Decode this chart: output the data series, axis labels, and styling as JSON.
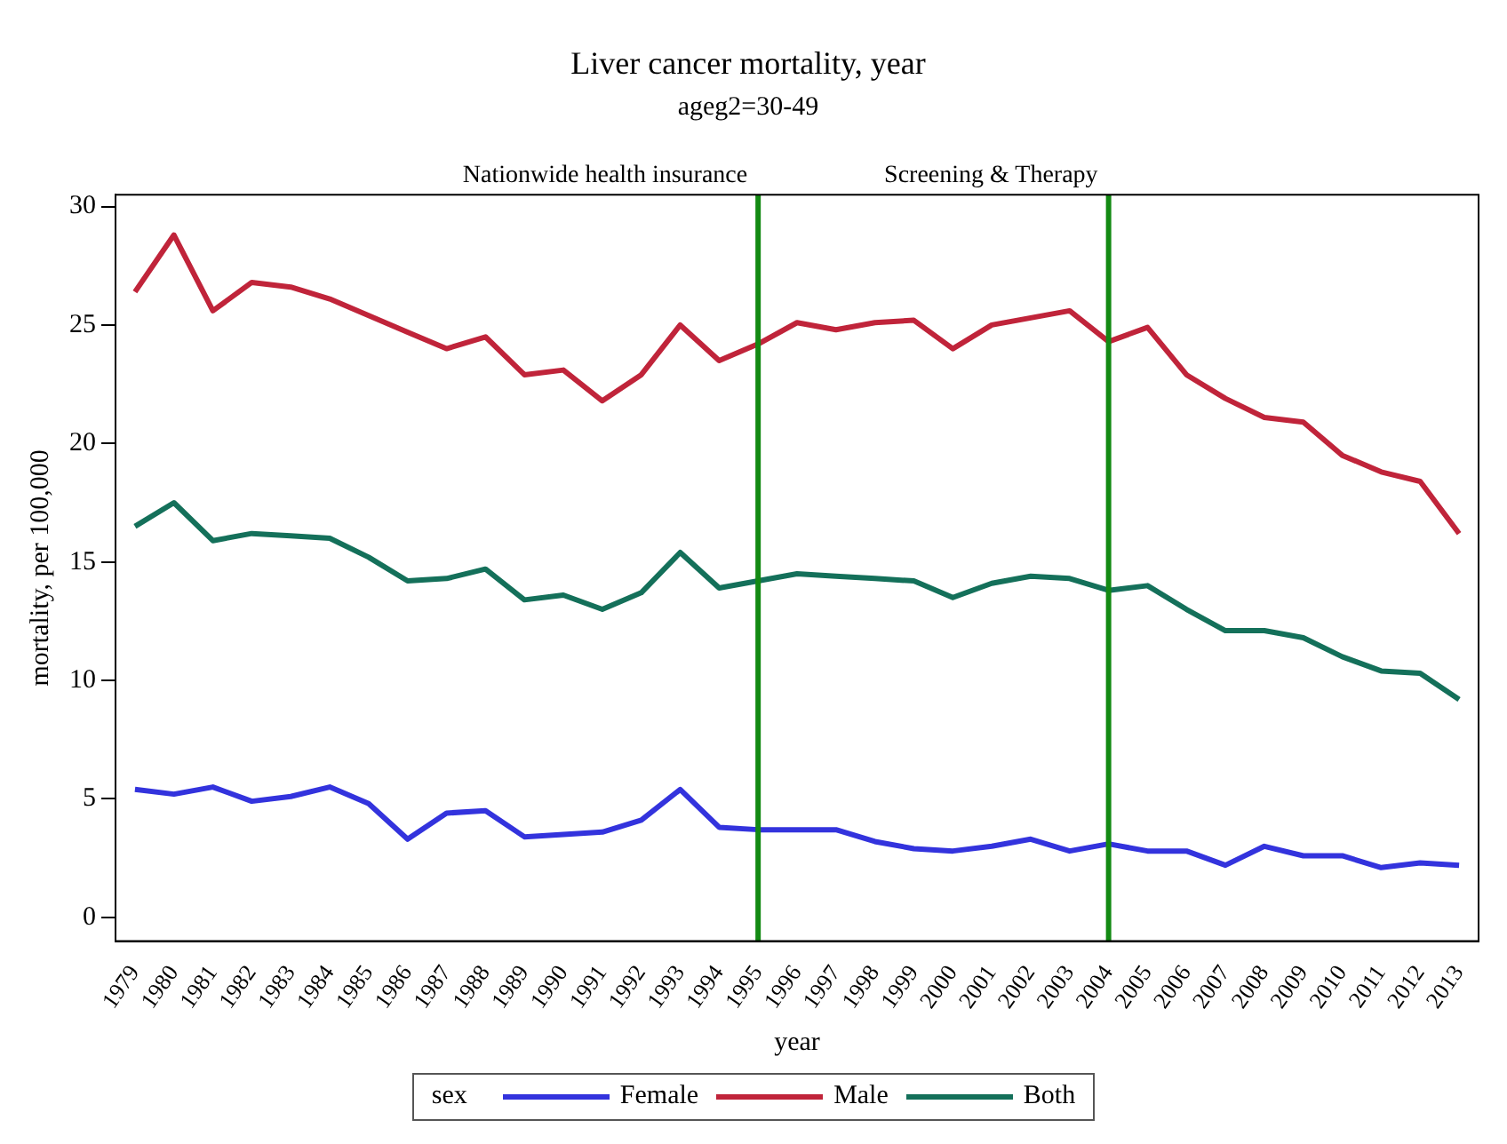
{
  "chart_data": {
    "type": "line",
    "title": "Liver cancer mortality, year",
    "subtitle": "ageg2=30-49",
    "xlabel": "year",
    "ylabel": "mortality, per 100,000",
    "legend_title": "sex",
    "legend": "bottom",
    "grid": false,
    "marker": "none",
    "line_style": "solid",
    "categories": [
      "1979",
      "1980",
      "1981",
      "1982",
      "1983",
      "1984",
      "1985",
      "1986",
      "1987",
      "1988",
      "1989",
      "1990",
      "1991",
      "1992",
      "1993",
      "1994",
      "1995",
      "1996",
      "1997",
      "1998",
      "1999",
      "2000",
      "2001",
      "2002",
      "2003",
      "2004",
      "2005",
      "2006",
      "2007",
      "2008",
      "2009",
      "2010",
      "2011",
      "2012",
      "2013"
    ],
    "ylim": [
      -1,
      30.5
    ],
    "yticks": [
      0,
      5,
      10,
      15,
      20,
      25,
      30
    ],
    "series": [
      {
        "name": "Female",
        "color": "#3333dd",
        "values": [
          5.4,
          5.2,
          5.5,
          4.9,
          5.1,
          5.5,
          4.8,
          3.3,
          4.4,
          4.5,
          3.4,
          3.5,
          3.6,
          4.1,
          5.4,
          3.8,
          3.7,
          3.7,
          3.7,
          3.2,
          2.9,
          2.8,
          3.0,
          3.3,
          2.8,
          3.1,
          2.8,
          2.8,
          2.2,
          3.0,
          2.6,
          2.6,
          2.1,
          2.3,
          2.2
        ]
      },
      {
        "name": "Male",
        "color": "#c0243a",
        "values": [
          26.4,
          28.8,
          25.6,
          26.8,
          26.6,
          26.1,
          25.4,
          24.7,
          24.0,
          24.5,
          22.9,
          23.1,
          21.8,
          22.9,
          25.0,
          23.5,
          24.2,
          25.1,
          24.8,
          25.1,
          25.2,
          24.0,
          25.0,
          25.3,
          25.6,
          24.3,
          24.9,
          22.9,
          21.9,
          21.1,
          20.9,
          19.5,
          18.8,
          18.4,
          16.2
        ]
      },
      {
        "name": "Both",
        "color": "#14705a",
        "values": [
          16.5,
          17.5,
          15.9,
          16.2,
          16.1,
          16.0,
          15.2,
          14.2,
          14.3,
          14.7,
          13.4,
          13.6,
          13.0,
          13.7,
          15.4,
          13.9,
          14.2,
          14.5,
          14.4,
          14.3,
          14.2,
          13.5,
          14.1,
          14.4,
          14.3,
          13.8,
          14.0,
          13.0,
          12.1,
          12.1,
          11.8,
          11.0,
          10.4,
          10.3,
          9.2
        ]
      }
    ],
    "ref_lines": [
      {
        "axis": "x",
        "value": "1995",
        "label": "Nationwide health insurance",
        "color": "#138a13"
      },
      {
        "axis": "x",
        "value": "2004",
        "label": "Screening & Therapy",
        "color": "#138a13"
      }
    ]
  }
}
